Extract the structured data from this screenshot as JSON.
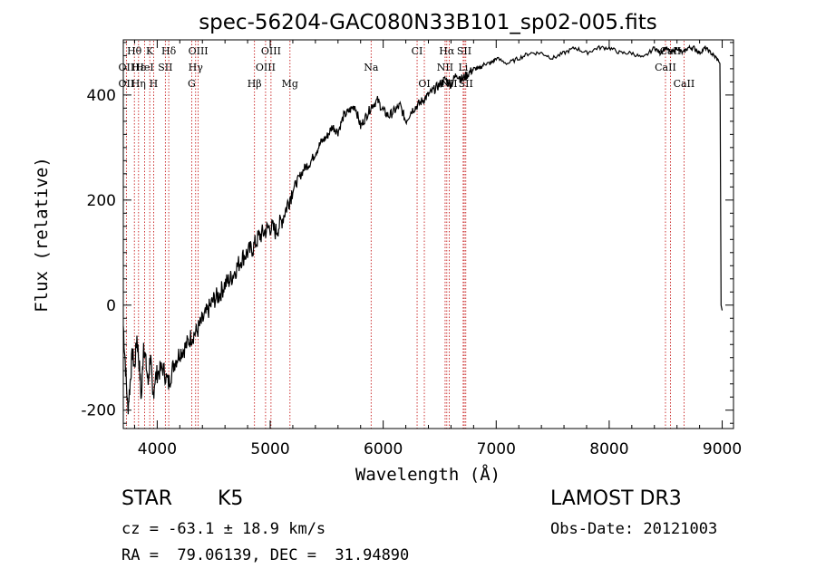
{
  "chart_data": {
    "type": "line",
    "title": "spec-56204-GAC080N33B101_sp02-005.fits",
    "xlabel": "Wavelength (Å)",
    "ylabel": "Flux (relative)",
    "xlim": [
      3700,
      9100
    ],
    "ylim": [
      -235,
      505
    ],
    "xticks": [
      4000,
      5000,
      6000,
      7000,
      8000,
      9000
    ],
    "xtick_labels": [
      "4000",
      "5000",
      "6000",
      "7000",
      "8000",
      "9000"
    ],
    "yticks": [
      -200,
      0,
      200,
      400
    ],
    "ytick_labels": [
      "-200",
      "0",
      "200",
      "400"
    ],
    "grid": false,
    "line_color": "#000000",
    "marker_color": "#c00000",
    "series": [
      {
        "name": "flux",
        "x": [
          3700,
          3720,
          3740,
          3760,
          3780,
          3800,
          3820,
          3840,
          3860,
          3880,
          3900,
          3920,
          3940,
          3960,
          3980,
          4000,
          4050,
          4100,
          4150,
          4200,
          4250,
          4300,
          4350,
          4400,
          4450,
          4500,
          4550,
          4600,
          4650,
          4700,
          4750,
          4800,
          4850,
          4900,
          4950,
          5000,
          5050,
          5100,
          5150,
          5200,
          5250,
          5300,
          5350,
          5400,
          5450,
          5500,
          5550,
          5600,
          5650,
          5700,
          5750,
          5800,
          5850,
          5900,
          5950,
          6000,
          6050,
          6100,
          6150,
          6200,
          6250,
          6300,
          6350,
          6400,
          6450,
          6500,
          6550,
          6600,
          6650,
          6700,
          6750,
          6800,
          6850,
          6900,
          6950,
          7000,
          7100,
          7200,
          7300,
          7400,
          7500,
          7600,
          7700,
          7800,
          7900,
          8000,
          8100,
          8200,
          8300,
          8400,
          8450,
          8500,
          8550,
          8600,
          8650,
          8700,
          8750,
          8800,
          8850,
          8900,
          8950,
          8980,
          8990,
          9000
        ],
        "y": [
          -40,
          -120,
          -200,
          -150,
          -90,
          -120,
          -60,
          -110,
          -180,
          -70,
          -110,
          -150,
          -90,
          -180,
          -140,
          -130,
          -120,
          -150,
          -110,
          -90,
          -80,
          -60,
          -50,
          -30,
          -10,
          10,
          20,
          40,
          50,
          70,
          90,
          100,
          110,
          130,
          140,
          150,
          140,
          160,
          190,
          220,
          240,
          260,
          270,
          290,
          310,
          320,
          340,
          330,
          360,
          370,
          380,
          340,
          360,
          380,
          390,
          370,
          360,
          370,
          380,
          350,
          370,
          380,
          390,
          400,
          410,
          420,
          430,
          420,
          440,
          430,
          440,
          450,
          450,
          460,
          460,
          470,
          460,
          470,
          480,
          480,
          470,
          480,
          490,
          480,
          490,
          490,
          480,
          480,
          470,
          490,
          480,
          490,
          480,
          490,
          480,
          490,
          490,
          480,
          490,
          480,
          470,
          460,
          0,
          -10
        ]
      }
    ],
    "annotations": {
      "spectral_lines": [
        {
          "label": "Hθ",
          "wavelength": 3798,
          "row": 1
        },
        {
          "label": "K",
          "wavelength": 3934,
          "row": 1
        },
        {
          "label": "Hδ",
          "wavelength": 4102,
          "row": 1
        },
        {
          "label": "OIII",
          "wavelength": 4363,
          "row": 1
        },
        {
          "label": "OIII",
          "wavelength": 5007,
          "row": 1
        },
        {
          "label": "CI",
          "wavelength": 6300,
          "row": 1
        },
        {
          "label": "Hα",
          "wavelength": 6563,
          "row": 1
        },
        {
          "label": "SII",
          "wavelength": 6717,
          "row": 1
        },
        {
          "label": "CaII",
          "wavelength": 8542,
          "row": 1
        },
        {
          "label": "OII",
          "wavelength": 3727,
          "row": 2
        },
        {
          "label": "Hε",
          "wavelength": 3835,
          "row": 2
        },
        {
          "label": "HeI",
          "wavelength": 3889,
          "row": 2
        },
        {
          "label": "SII",
          "wavelength": 4072,
          "row": 2
        },
        {
          "label": "Hγ",
          "wavelength": 4340,
          "row": 2
        },
        {
          "label": "OIII",
          "wavelength": 4959,
          "row": 2
        },
        {
          "label": "Na",
          "wavelength": 5893,
          "row": 2
        },
        {
          "label": "NII",
          "wavelength": 6548,
          "row": 2
        },
        {
          "label": "Li",
          "wavelength": 6708,
          "row": 2
        },
        {
          "label": "CaII",
          "wavelength": 8498,
          "row": 2
        },
        {
          "label": "OII",
          "wavelength": 3727,
          "row": 3
        },
        {
          "label": "Hη",
          "wavelength": 3835,
          "row": 3
        },
        {
          "label": "H",
          "wavelength": 3968,
          "row": 3
        },
        {
          "label": "G",
          "wavelength": 4305,
          "row": 3
        },
        {
          "label": "Hβ",
          "wavelength": 4861,
          "row": 3
        },
        {
          "label": "Mg",
          "wavelength": 5175,
          "row": 3
        },
        {
          "label": "OI",
          "wavelength": 6364,
          "row": 3
        },
        {
          "label": "NII",
          "wavelength": 6584,
          "row": 3
        },
        {
          "label": "SII",
          "wavelength": 6731,
          "row": 3
        },
        {
          "label": "CaII",
          "wavelength": 8662,
          "row": 3
        }
      ]
    }
  },
  "info": {
    "object_class": "STAR",
    "subclass": "K5",
    "survey": "LAMOST DR3",
    "redshift_text": "cz = -63.1 ± 18.9 km/s",
    "obs_date_text": "Obs-Date: 20121003",
    "coords_text": "RA =  79.06139, DEC =  31.94890"
  }
}
